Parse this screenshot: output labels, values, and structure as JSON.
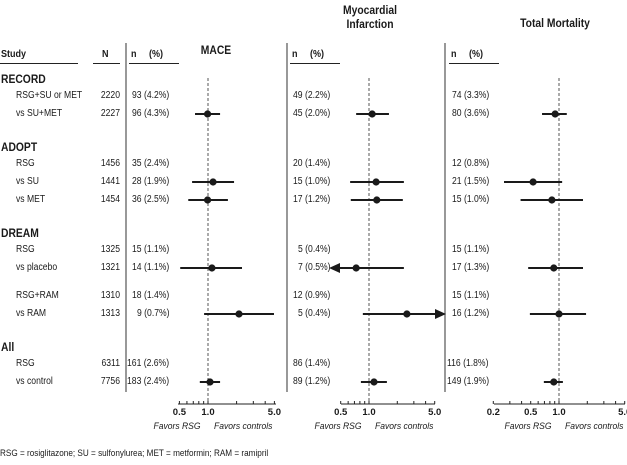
{
  "chart_data": {
    "type": "forest",
    "scale": "log",
    "footnote": "RSG = rosiglitazone; SU = sulfonylurea; MET = metformin; RAM = ramipril",
    "columns": {
      "study": "Study",
      "N": "N",
      "n": "n",
      "pct": "(%)"
    },
    "panels": [
      {
        "key": "mace",
        "title": "MACE",
        "title_lines": [
          "MACE"
        ],
        "xlim": [
          0.5,
          5.0
        ],
        "ticks": [
          "0.5",
          "1.0",
          "5.0"
        ],
        "tick_values": [
          0.5,
          1.0,
          5.0
        ],
        "minor_ticks": [
          0.6,
          0.7,
          0.8,
          0.9,
          2,
          3,
          4
        ],
        "favors_left": "Favors RSG",
        "favors_right": "Favors controls"
      },
      {
        "key": "mi",
        "title": "Myocardial Infarction",
        "title_lines": [
          "Myocardial",
          "Infarction"
        ],
        "xlim": [
          0.5,
          5.0
        ],
        "ticks": [
          "0.5",
          "1.0",
          "5.0"
        ],
        "tick_values": [
          0.5,
          1.0,
          5.0
        ],
        "minor_ticks": [
          0.6,
          0.7,
          0.8,
          0.9,
          2,
          3,
          4
        ],
        "favors_left": "Favors RSG",
        "favors_right": "Favors controls"
      },
      {
        "key": "tm",
        "title": "Total Mortality",
        "title_lines": [
          "Total Mortality"
        ],
        "xlim": [
          0.2,
          5.0
        ],
        "ticks": [
          "0.2",
          "0.5",
          "1.0",
          "5.0"
        ],
        "tick_values": [
          0.2,
          0.5,
          1.0,
          5.0
        ],
        "minor_ticks": [
          0.3,
          0.4,
          0.6,
          0.7,
          0.8,
          0.9,
          2,
          3,
          4
        ],
        "favors_left": "Favors RSG",
        "favors_right": "Favors controls"
      }
    ],
    "groups": [
      {
        "name": "RECORD",
        "rows": [
          {
            "label": "RSG+SU or MET",
            "N": "2220",
            "mace": "93 (4.2%)",
            "mi": "49 (2.2%)",
            "tm": "74 (3.3%)"
          },
          {
            "label": "vs SU+MET",
            "N": "2227",
            "mace": "96 (4.3%)",
            "mi": "45 (2.0%)",
            "tm": "80 (3.6%)",
            "ci": {
              "mace": [
                0.99,
                0.73,
                1.34
              ],
              "mi": [
                1.08,
                0.73,
                1.63
              ],
              "tm": [
                0.91,
                0.66,
                1.21
              ]
            }
          }
        ]
      },
      {
        "name": "ADOPT",
        "rows": [
          {
            "label": "RSG",
            "N": "1456",
            "mace": "35 (2.4%)",
            "mi": "20 (1.4%)",
            "tm": "12 (0.8%)"
          },
          {
            "label": "vs SU",
            "N": "1441",
            "mace": "28 (1.9%)",
            "mi": "15 (1.0%)",
            "tm": "21 (1.5%)",
            "ci": {
              "mace": [
                1.13,
                0.68,
                1.88
              ],
              "mi": [
                1.19,
                0.63,
                2.35
              ],
              "tm": [
                0.53,
                0.26,
                1.08
              ]
            }
          },
          {
            "label": "vs MET",
            "N": "1454",
            "mace": "36 (2.5%)",
            "mi": "17 (1.2%)",
            "tm": "15 (1.0%)",
            "ci": {
              "mace": [
                0.99,
                0.62,
                1.62
              ],
              "mi": [
                1.21,
                0.64,
                2.29
              ],
              "tm": [
                0.84,
                0.39,
                1.8
              ]
            }
          }
        ]
      },
      {
        "name": "DREAM",
        "rows": [
          {
            "label": "RSG",
            "N": "1325",
            "mace": "15 (1.1%)",
            "mi": "5 (0.4%)",
            "tm": "15 (1.1%)"
          },
          {
            "label": "vs placebo",
            "N": "1321",
            "mace": "14 (1.1%)",
            "mi": "7 (0.5%)",
            "tm": "17 (1.3%)",
            "ci": {
              "mace": [
                1.1,
                0.51,
                2.28
              ],
              "mi": [
                0.73,
                null,
                2.35
              ],
              "tm": [
                0.88,
                0.47,
                1.8
              ]
            }
          },
          {
            "label": "RSG+RAM",
            "N": "1310",
            "mace": "18 (1.4%)",
            "mi": "12 (0.9%)",
            "tm": "15 (1.1%)",
            "gap_before": true
          },
          {
            "label": "vs RAM",
            "N": "1313",
            "mace": "9 (0.7%)",
            "mi": "5 (0.4%)",
            "tm": "16 (1.2%)",
            "ci": {
              "mace": [
                2.12,
                0.91,
                4.95
              ],
              "mi": [
                2.53,
                0.86,
                null
              ],
              "tm": [
                1.0,
                0.49,
                1.94
              ]
            }
          }
        ]
      },
      {
        "name": "All",
        "rows": [
          {
            "label": "RSG",
            "N": "6311",
            "mace": "161 (2.6%)",
            "mi": "86 (1.4%)",
            "tm": "116 (1.8%)"
          },
          {
            "label": "vs control",
            "N": "7756",
            "mace": "183 (2.4%)",
            "mi": "89 (1.2%)",
            "tm": "149 (1.9%)",
            "ci": {
              "mace": [
                1.05,
                0.82,
                1.34
              ],
              "mi": [
                1.13,
                0.82,
                1.55
              ],
              "tm": [
                0.88,
                0.69,
                1.1
              ]
            }
          }
        ]
      }
    ]
  }
}
